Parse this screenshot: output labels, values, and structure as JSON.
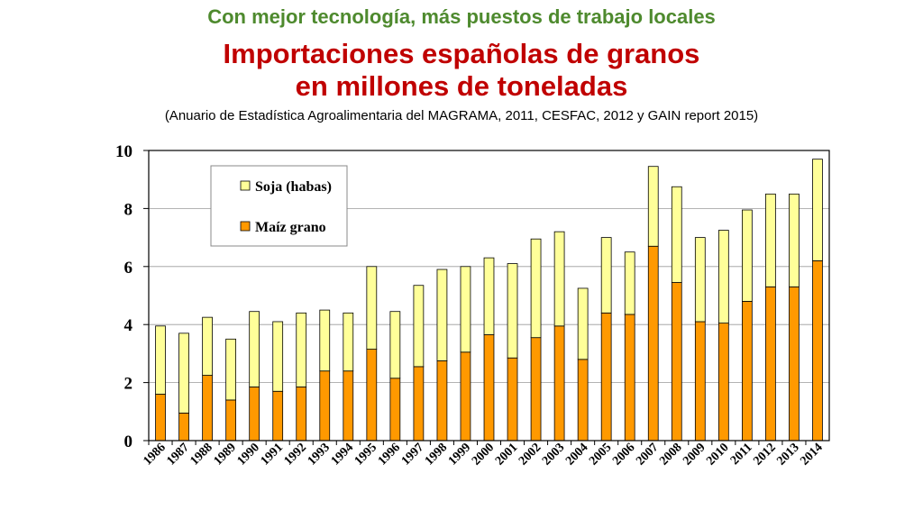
{
  "chart_data": {
    "type": "bar",
    "stacked": true,
    "title": "Importaciones españolas de granos en millones de toneladas",
    "supertitle": "Con mejor tecnología, más puestos de trabajo locales",
    "title_lines": [
      "Importaciones españolas de granos",
      "en millones de toneladas"
    ],
    "subtitle": "(Anuario de Estadística Agroalimentaria del MAGRAMA, 2011, CESFAC, 2012 y GAIN report 2015)",
    "xlabel": "",
    "ylabel": "",
    "ylim": [
      0,
      10
    ],
    "yticks": [
      0,
      2,
      4,
      6,
      8,
      10
    ],
    "grid": true,
    "legend_position": "top-left",
    "categories": [
      "1986",
      "1987",
      "1988",
      "1989",
      "1990",
      "1991",
      "1992",
      "1993",
      "1994",
      "1995",
      "1996",
      "1997",
      "1998",
      "1999",
      "2000",
      "2001",
      "2002",
      "2003",
      "2004",
      "2005",
      "2006",
      "2007",
      "2008",
      "2009",
      "2010",
      "2011",
      "2012",
      "2013",
      "2014"
    ],
    "series": [
      {
        "name": "Maíz grano",
        "color": "#ff9900",
        "values": [
          1.6,
          0.95,
          2.25,
          1.4,
          1.85,
          1.7,
          1.85,
          2.4,
          2.4,
          3.15,
          2.15,
          2.55,
          2.75,
          3.05,
          3.65,
          2.85,
          3.55,
          3.95,
          2.8,
          4.4,
          4.35,
          6.7,
          5.45,
          4.1,
          4.05,
          4.8,
          5.3,
          5.3,
          6.2
        ]
      },
      {
        "name": "Soja (habas)",
        "color": "#ffff99",
        "values": [
          2.35,
          2.75,
          2.0,
          2.1,
          2.6,
          2.4,
          2.55,
          2.1,
          2.0,
          2.85,
          2.3,
          2.8,
          3.15,
          2.95,
          2.65,
          3.25,
          3.4,
          3.25,
          2.45,
          2.6,
          2.15,
          2.75,
          3.3,
          2.9,
          3.2,
          3.15,
          3.2,
          3.2,
          3.5
        ]
      }
    ]
  }
}
